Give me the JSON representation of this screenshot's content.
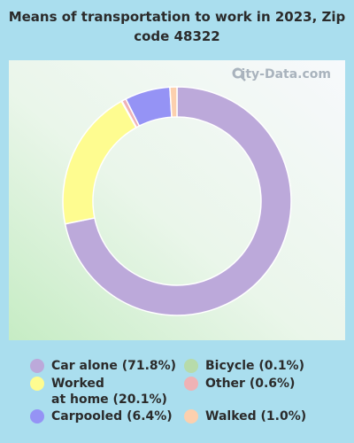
{
  "chart_data": {
    "type": "pie",
    "title": "Means of transportation to work in 2023, Zip code 48322",
    "donut": true,
    "slices": [
      {
        "label": "Car alone",
        "display": "Car alone (71.8%)",
        "value": 71.8,
        "color": "#bca9da"
      },
      {
        "label": "Worked at home",
        "display": "Worked\nat home (20.1%)",
        "value": 20.1,
        "color": "#fefc90"
      },
      {
        "label": "Bicycle",
        "display": "Bicycle (0.1%)",
        "value": 0.1,
        "color": "#b7dbaa"
      },
      {
        "label": "Other",
        "display": "Other (0.6%)",
        "value": 0.6,
        "color": "#efb2b5"
      },
      {
        "label": "Carpooled",
        "display": "Carpooled (6.4%)",
        "value": 6.4,
        "color": "#9593f5"
      },
      {
        "label": "Walked",
        "display": "Walked (1.0%)",
        "value": 1.0,
        "color": "#fcd0ae"
      }
    ],
    "legend_order": [
      "Car alone",
      "Worked at home",
      "Carpooled",
      "Bicycle",
      "Other",
      "Walked"
    ]
  },
  "watermark": "City-Data.com"
}
